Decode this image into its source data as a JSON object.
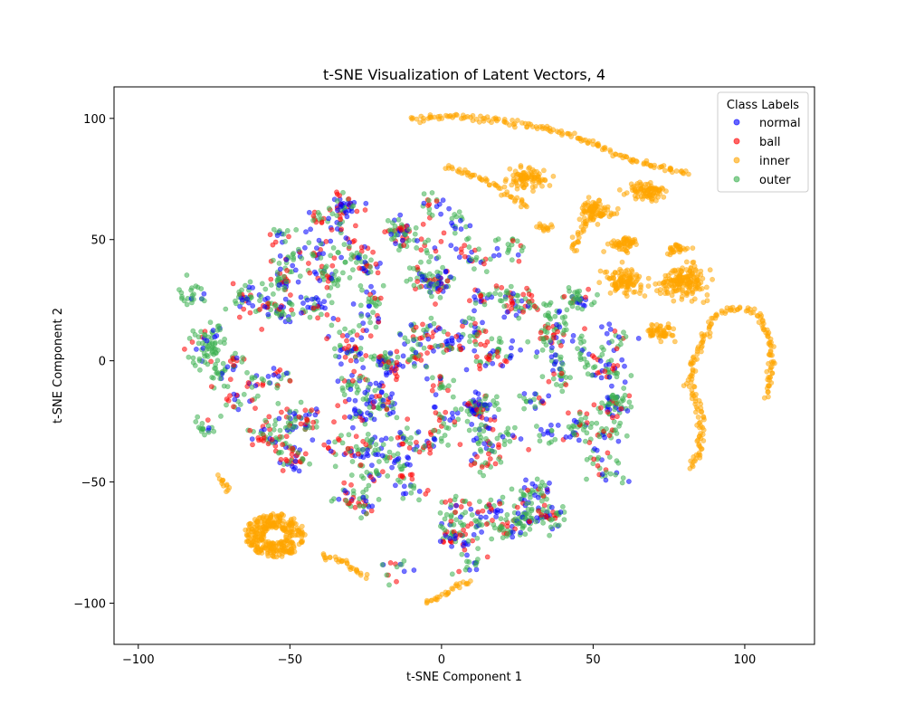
{
  "chart_data": {
    "type": "scatter",
    "title": "t-SNE Visualization of Latent Vectors, 4",
    "xlabel": "t-SNE Component 1",
    "ylabel": "t-SNE Component 2",
    "xlim": [
      -108,
      123
    ],
    "ylim": [
      -117,
      113
    ],
    "xticks": [
      -100,
      -50,
      0,
      50,
      100
    ],
    "yticks": [
      -100,
      -50,
      0,
      50,
      100
    ],
    "grid": false,
    "legend": {
      "title": "Class Labels",
      "placement": "upper right"
    },
    "series": [
      {
        "name": "normal",
        "color": "#0000ff"
      },
      {
        "name": "ball",
        "color": "#ff0000"
      },
      {
        "name": "inner",
        "color": "#ffa500"
      },
      {
        "name": "outer",
        "color": "#3cb050"
      }
    ],
    "clusters": {
      "main_blob": {
        "description": "mixed normal/ball/outer region",
        "x_range": [
          -97,
          65
        ],
        "y_range": [
          -93,
          70
        ]
      },
      "inner_curves": [
        {
          "points": [
            [
              -10,
              100
            ],
            [
              5,
              101
            ],
            [
              20,
              99
            ],
            [
              35,
              96
            ],
            [
              45,
              92
            ],
            [
              55,
              87
            ],
            [
              65,
              82
            ],
            [
              75,
              79
            ],
            [
              82,
              77
            ]
          ]
        },
        {
          "points": [
            [
              2,
              80
            ],
            [
              10,
              77
            ],
            [
              18,
              72
            ],
            [
              24,
              67
            ],
            [
              29,
              63
            ]
          ]
        },
        {
          "points": [
            [
              43,
              45
            ],
            [
              45,
              52
            ],
            [
              48,
              57
            ],
            [
              52,
              60
            ],
            [
              58,
              61
            ]
          ]
        },
        {
          "points": [
            [
              82,
              -44
            ],
            [
              85,
              -38
            ],
            [
              86,
              -30
            ],
            [
              85,
              -20
            ],
            [
              82,
              -10
            ],
            [
              83,
              0
            ],
            [
              86,
              8
            ],
            [
              89,
              16
            ],
            [
              94,
              21
            ],
            [
              100,
              22
            ],
            [
              105,
              18
            ],
            [
              108,
              10
            ],
            [
              109,
              0
            ],
            [
              108,
              -10
            ],
            [
              107,
              -15
            ]
          ]
        },
        {
          "points": [
            [
              -5,
              -100
            ],
            [
              0,
              -97
            ],
            [
              5,
              -93
            ],
            [
              10,
              -91
            ]
          ]
        },
        {
          "points": [
            [
              -40,
              -80
            ],
            [
              -33,
              -83
            ],
            [
              -28,
              -86
            ],
            [
              -25,
              -90
            ]
          ]
        },
        {
          "points": [
            [
              -73,
              -48
            ],
            [
              -72,
              -50
            ],
            [
              -71,
              -52
            ],
            [
              -70,
              -54
            ]
          ]
        }
      ],
      "inner_blobs": [
        {
          "center": [
            28,
            75
          ],
          "spread": [
            6,
            4
          ]
        },
        {
          "center": [
            50,
            62
          ],
          "spread": [
            5,
            4
          ]
        },
        {
          "center": [
            68,
            70
          ],
          "spread": [
            6,
            4
          ]
        },
        {
          "center": [
            78,
            46
          ],
          "spread": [
            4,
            2
          ]
        },
        {
          "center": [
            60,
            48
          ],
          "spread": [
            5,
            3
          ]
        },
        {
          "center": [
            60,
            33
          ],
          "spread": [
            6,
            5
          ]
        },
        {
          "center": [
            80,
            33
          ],
          "spread": [
            8,
            6
          ]
        },
        {
          "center": [
            72,
            12
          ],
          "spread": [
            5,
            3
          ]
        },
        {
          "center": [
            34,
            55
          ],
          "spread": [
            2,
            2
          ]
        },
        {
          "center": [
            -55,
            -72
          ],
          "spread": [
            10,
            9
          ]
        }
      ]
    }
  }
}
